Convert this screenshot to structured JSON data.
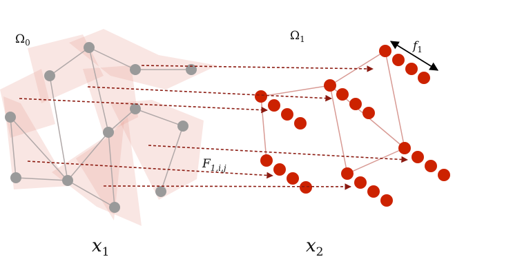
{
  "labels": {
    "domain0": "Ω",
    "domain0_sub": "0",
    "domain1": "Ω",
    "domain1_sub": "1",
    "filter": "f",
    "filter_sub": "1",
    "op": "F",
    "op_sub": "1,i,j",
    "x1": "x",
    "x1_sub": "1",
    "x2": "x",
    "x2_sub": "2"
  },
  "colors": {
    "gray_node": "#9a9a9a",
    "red_node": "#cc2200",
    "edge_gray": "#b0a8a8",
    "edge_red": "#d89a94",
    "arrow": "#8b1a10",
    "patch": "#e8a49a"
  }
}
